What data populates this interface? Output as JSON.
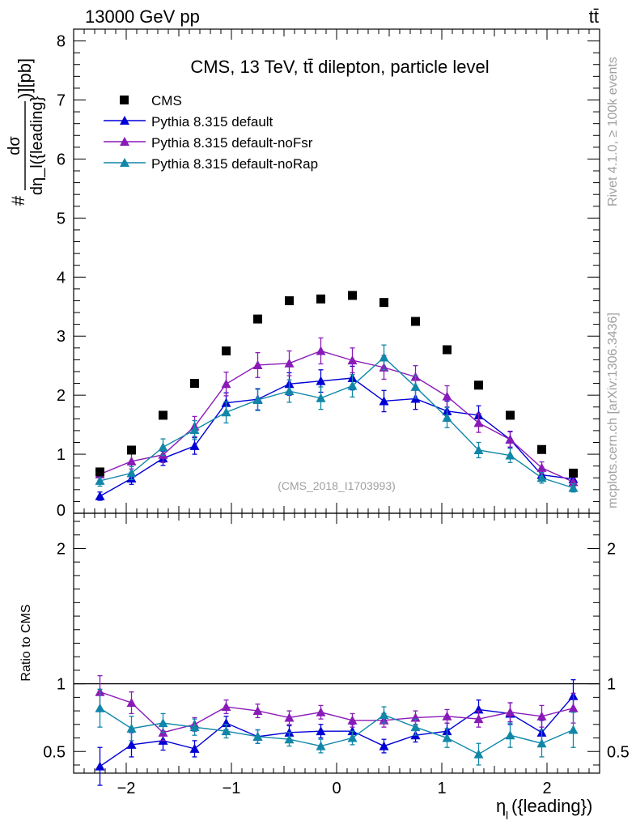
{
  "header": {
    "energy_label": "13000 GeV pp",
    "process_label": "tt̄"
  },
  "side": {
    "rivet_label": "Rivet 4.1.0, ≥ 100k events",
    "mcplots_label": "mcplots.cern.ch [arXiv:1306.3436]"
  },
  "chart_data": {
    "type": "scatter",
    "title": "CMS, 13 TeV, tt̄ dilepton, particle level",
    "analysis_label": "(CMS_2018_I1703993)",
    "ylabel_top": "#dσ/dη_l({leading})][pb]",
    "ylabel_top_parts": {
      "hash": "#",
      "numerator": "dσ",
      "denominator": "dη_l({leading}",
      "suffix": ")][pb]"
    },
    "ylabel_ratio": "Ratio to CMS",
    "xlabel": "η_l({leading})",
    "xlabel_parts": {
      "main": "η",
      "sub": "l",
      "rest": "({leading})"
    },
    "xlim": [
      -2.5,
      2.5
    ],
    "ylim_top": [
      0,
      8.2
    ],
    "ylim_ratio": [
      0.34,
      2.26
    ],
    "x_ticks": [
      -2,
      -1,
      0,
      1,
      2
    ],
    "x_tick_labels": [
      "−2",
      "−1",
      "0",
      "1",
      "2"
    ],
    "y_ticks_top": [
      0,
      1,
      2,
      3,
      4,
      5,
      6,
      7,
      8
    ],
    "y_tick_labels_top": [
      "0",
      "1",
      "2",
      "3",
      "4",
      "5",
      "6",
      "7",
      "8"
    ],
    "y_ticks_ratio": [
      0.5,
      1,
      2
    ],
    "y_tick_labels_ratio": [
      "0.5",
      "1",
      "2"
    ],
    "legend": [
      "CMS",
      "Pythia 8.315 default",
      "Pythia 8.315 default-noFsr",
      "Pythia 8.315 default-noRap"
    ],
    "x": [
      -2.25,
      -1.95,
      -1.65,
      -1.35,
      -1.05,
      -0.75,
      -0.45,
      -0.15,
      0.15,
      0.45,
      0.75,
      1.05,
      1.35,
      1.65,
      1.95,
      2.25
    ],
    "data": {
      "name": "CMS",
      "color": "#000000",
      "values": [
        0.7,
        1.07,
        1.66,
        2.2,
        2.75,
        3.29,
        3.6,
        3.63,
        3.69,
        3.57,
        3.25,
        2.77,
        2.17,
        1.66,
        1.08,
        0.68
      ]
    },
    "series": [
      {
        "name": "Pythia 8.315 default",
        "color": "#0000d6",
        "values": [
          0.29,
          0.59,
          0.93,
          1.14,
          1.87,
          1.93,
          2.19,
          2.24,
          2.29,
          1.9,
          1.94,
          1.73,
          1.66,
          1.25,
          0.65,
          0.58
        ],
        "errors": [
          0.07,
          0.1,
          0.12,
          0.14,
          0.17,
          0.18,
          0.19,
          0.19,
          0.2,
          0.18,
          0.18,
          0.17,
          0.16,
          0.13,
          0.09,
          0.08
        ],
        "ratio": [
          0.39,
          0.55,
          0.58,
          0.52,
          0.71,
          0.61,
          0.64,
          0.65,
          0.65,
          0.54,
          0.62,
          0.65,
          0.81,
          0.78,
          0.64,
          0.91
        ],
        "ratio_errors": [
          0.14,
          0.09,
          0.07,
          0.06,
          0.05,
          0.05,
          0.05,
          0.05,
          0.05,
          0.05,
          0.05,
          0.06,
          0.07,
          0.08,
          0.09,
          0.12
        ]
      },
      {
        "name": "Pythia 8.315 default-noFsr",
        "color": "#8a1ab8",
        "values": [
          0.66,
          0.88,
          0.99,
          1.47,
          2.19,
          2.51,
          2.54,
          2.75,
          2.59,
          2.47,
          2.31,
          1.98,
          1.53,
          1.25,
          0.77,
          0.53
        ],
        "errors": [
          0.1,
          0.13,
          0.13,
          0.17,
          0.2,
          0.21,
          0.21,
          0.22,
          0.21,
          0.2,
          0.19,
          0.18,
          0.16,
          0.14,
          0.1,
          0.08
        ],
        "ratio": [
          0.94,
          0.86,
          0.64,
          0.7,
          0.83,
          0.8,
          0.75,
          0.79,
          0.73,
          0.73,
          0.75,
          0.76,
          0.74,
          0.79,
          0.76,
          0.82
        ],
        "ratio_errors": [
          0.12,
          0.08,
          0.06,
          0.05,
          0.05,
          0.05,
          0.05,
          0.05,
          0.05,
          0.05,
          0.05,
          0.05,
          0.06,
          0.07,
          0.08,
          0.11
        ]
      },
      {
        "name": "Pythia 8.315 default-noRap",
        "color": "#1087a8",
        "values": [
          0.55,
          0.68,
          1.12,
          1.41,
          1.71,
          1.92,
          2.07,
          1.95,
          2.16,
          2.64,
          2.14,
          1.62,
          1.07,
          0.98,
          0.6,
          0.43
        ],
        "errors": [
          0.09,
          0.11,
          0.14,
          0.16,
          0.18,
          0.18,
          0.19,
          0.19,
          0.19,
          0.21,
          0.19,
          0.17,
          0.13,
          0.12,
          0.09,
          0.07
        ],
        "ratio": [
          0.82,
          0.67,
          0.71,
          0.68,
          0.65,
          0.61,
          0.59,
          0.54,
          0.6,
          0.77,
          0.68,
          0.6,
          0.48,
          0.62,
          0.56,
          0.66
        ],
        "ratio_errors": [
          0.14,
          0.09,
          0.07,
          0.06,
          0.05,
          0.05,
          0.05,
          0.05,
          0.05,
          0.06,
          0.06,
          0.07,
          0.08,
          0.09,
          0.1,
          0.13
        ]
      }
    ]
  }
}
